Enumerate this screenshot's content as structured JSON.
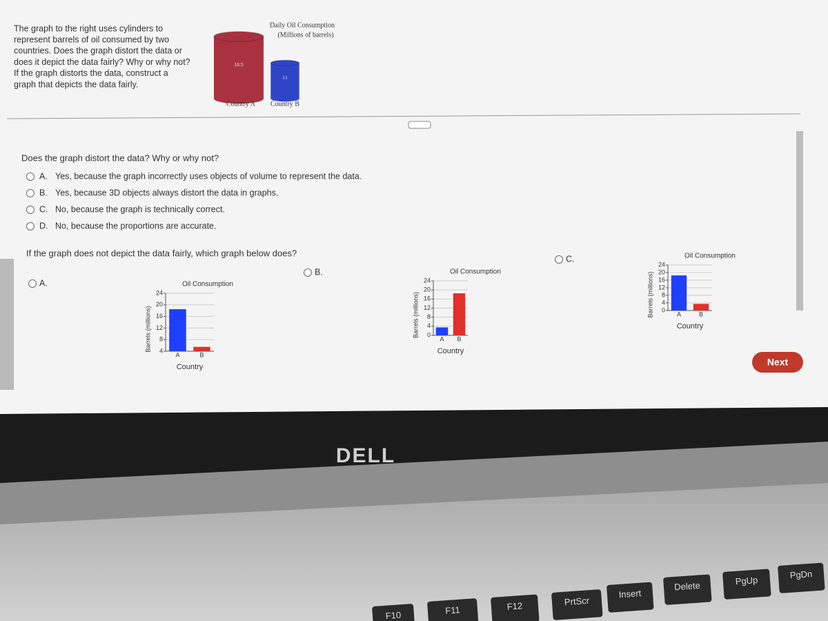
{
  "prompt_lines": [
    "The graph to the right uses cylinders to",
    "represent barrels of oil consumed by two",
    "countries. Does the graph distort the data or",
    "does it depict the data fairly? Why or why not?",
    "If the graph distorts the data, construct a",
    "graph that depicts the data fairly."
  ],
  "figure": {
    "title": "Daily Oil Consumption",
    "subtitle": "(Millions of barrels)",
    "categories": [
      "Country A",
      "Country B"
    ],
    "values": [
      18.5,
      3.5
    ],
    "colors": [
      "#a8323f",
      "#2f45c8"
    ]
  },
  "question1": {
    "text": "Does the graph distort the data? Why or why not?",
    "options": [
      {
        "letter": "A.",
        "text": "Yes, because the graph incorrectly uses objects of volume to represent the data."
      },
      {
        "letter": "B.",
        "text": "Yes, because 3D objects always distort the data in graphs."
      },
      {
        "letter": "C.",
        "text": "No, because the graph is technically correct."
      },
      {
        "letter": "D.",
        "text": "No, because the proportions are accurate."
      }
    ]
  },
  "question2": {
    "text": "If the graph does not depict the data fairly, which graph below does?",
    "options": [
      {
        "letter": "A.",
        "chart": {
          "type": "bar",
          "title": "Oil Consumption",
          "y_label": "Barrels (millions)",
          "x_label": "Country",
          "categories": [
            "A",
            "B"
          ],
          "values": [
            18.5,
            5.5
          ],
          "colors": [
            "#1f3fff",
            "#e0302a"
          ],
          "ylim": [
            4,
            24
          ],
          "yticks": [
            4,
            8,
            12,
            16,
            20,
            24
          ]
        }
      },
      {
        "letter": "B.",
        "chart": {
          "type": "bar",
          "title": "Oil Consumption",
          "y_label": "Barrels (millions)",
          "x_label": "Country",
          "categories": [
            "A",
            "B"
          ],
          "values": [
            3.5,
            18.5
          ],
          "colors": [
            "#1f3fff",
            "#e0302a"
          ],
          "ylim": [
            0,
            24
          ],
          "yticks": [
            0,
            4,
            8,
            12,
            16,
            20,
            24
          ]
        }
      },
      {
        "letter": "C.",
        "chart": {
          "type": "bar",
          "title": "Oil Consumption",
          "y_label": "Barrels (millions)",
          "x_label": "Country",
          "categories": [
            "A",
            "B"
          ],
          "values": [
            18.5,
            3.5
          ],
          "colors": [
            "#1f3fff",
            "#e0302a"
          ],
          "ylim": [
            0,
            24
          ],
          "yticks": [
            0,
            4,
            8,
            12,
            16,
            20,
            24
          ]
        }
      }
    ]
  },
  "button": "Next",
  "laptop": {
    "brand": "DELL",
    "keys": [
      "F10",
      "F11",
      "F12",
      "PrtScr",
      "Insert",
      "Delete",
      "PgUp",
      "PgDn"
    ]
  }
}
